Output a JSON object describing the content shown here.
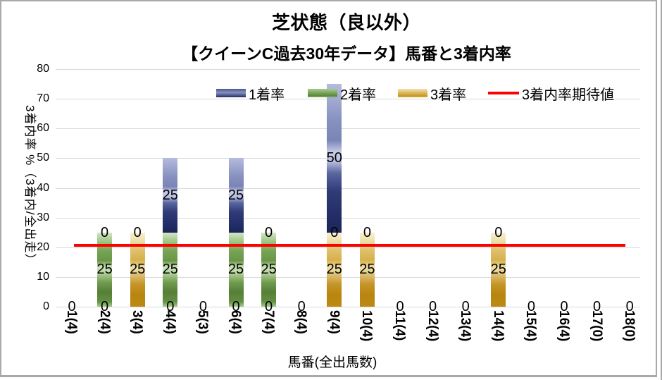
{
  "chart_data": {
    "type": "bar",
    "stacked": true,
    "title": "芝状態（良以外）",
    "subtitle": "【クイーンC過去30年データ】馬番と3着内率",
    "xlabel": "馬番(全出馬数)",
    "ylabel": "3着内率 %（3着内/全出走）",
    "ylim": [
      0,
      80
    ],
    "yticks": [
      0,
      10,
      20,
      30,
      40,
      50,
      60,
      70,
      80
    ],
    "grid": true,
    "legend_position": "top",
    "data_labels": true,
    "categories": [
      "1(4)",
      "2(4)",
      "3(4)",
      "4(4)",
      "5(3)",
      "6(4)",
      "7(4)",
      "8(4)",
      "9(4)",
      "10(4)",
      "11(4)",
      "12(4)",
      "13(4)",
      "14(4)",
      "15(4)",
      "16(4)",
      "17(0)",
      "18(0)"
    ],
    "series": [
      {
        "name": "1着率",
        "color": "#303C77",
        "values": [
          0,
          0,
          0,
          25,
          0,
          25,
          0,
          0,
          50,
          0,
          0,
          0,
          0,
          0,
          0,
          0,
          0,
          0
        ]
      },
      {
        "name": "2着率",
        "color": "#6F9C4E",
        "values": [
          0,
          25,
          0,
          25,
          0,
          25,
          25,
          0,
          0,
          0,
          0,
          0,
          0,
          0,
          0,
          0,
          0,
          0
        ]
      },
      {
        "name": "3着率",
        "color": "#C59428",
        "values": [
          0,
          0,
          25,
          0,
          0,
          0,
          0,
          0,
          25,
          25,
          0,
          0,
          0,
          25,
          0,
          0,
          0,
          0
        ]
      }
    ],
    "stack_order_bottom_to_top": [
      "3着率",
      "2着率",
      "1着率"
    ],
    "reference_line": {
      "name": "3着内率期待値",
      "value": 20.7,
      "color": "#FF0000"
    }
  },
  "colors": {
    "gridline": "#D9D9D9",
    "axis_line": "#D9D9D9",
    "text": "#000000",
    "frame_border": "#A9A9A9",
    "background": "#FFFFFF"
  }
}
